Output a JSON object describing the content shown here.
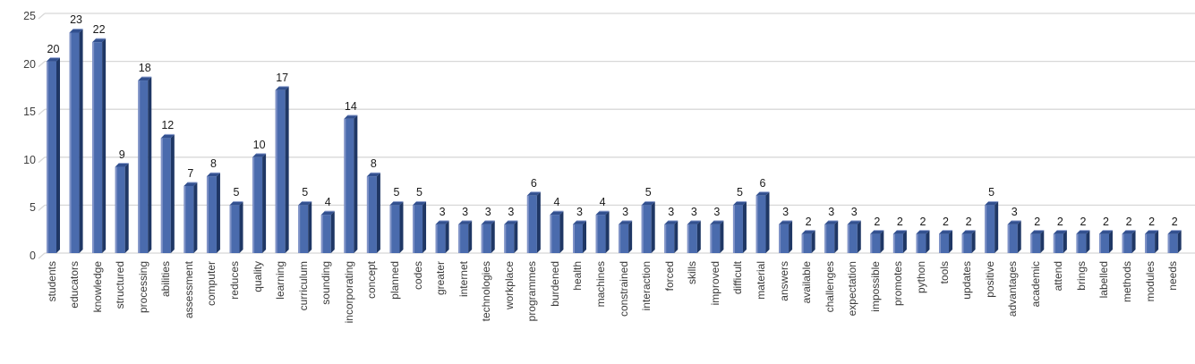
{
  "chart_data": {
    "type": "bar",
    "title": "",
    "xlabel": "",
    "ylabel": "",
    "ylim": [
      0,
      25
    ],
    "yticks": [
      0,
      5,
      10,
      15,
      20,
      25
    ],
    "grid": true,
    "legend": false,
    "data_labels": true,
    "bar_style": "3d",
    "categories": [
      "students",
      "educators",
      "knowledge",
      "structured",
      "processing",
      "abilities",
      "assessment",
      "computer",
      "reduces",
      "quality",
      "learning",
      "curriculum",
      "sounding",
      "incorporating",
      "concept",
      "planned",
      "codes",
      "greater",
      "internet",
      "technologies",
      "workplace",
      "programmes",
      "burdened",
      "health",
      "machines",
      "constrained",
      "interaction",
      "forced",
      "skills",
      "improved",
      "difficult",
      "material",
      "answers",
      "available",
      "challenges",
      "expectation",
      "impossible",
      "promotes",
      "python",
      "tools",
      "updates",
      "positive",
      "advantages",
      "academic",
      "attend",
      "brings",
      "labelled",
      "methods",
      "modules",
      "needs"
    ],
    "values": [
      20,
      23,
      22,
      9,
      18,
      12,
      7,
      8,
      5,
      10,
      17,
      5,
      4,
      14,
      8,
      5,
      5,
      3,
      3,
      3,
      3,
      6,
      4,
      3,
      4,
      3,
      5,
      3,
      3,
      3,
      5,
      6,
      3,
      2,
      3,
      3,
      2,
      2,
      2,
      2,
      2,
      5,
      3,
      2,
      2,
      2,
      2,
      2,
      2,
      2
    ],
    "colors": {
      "bar_front": "#4a6bad",
      "bar_front_highlight": "#8093c7",
      "bar_side": "#1f3765",
      "bar_top": "#32508f",
      "bar_top_edge": "#93a4d1",
      "gridline": "#d8d8d8",
      "tick_text": "#3f3f3f",
      "value_text": "#1a1a1a",
      "category_text": "#3a3a3a",
      "background": "#ffffff"
    }
  }
}
